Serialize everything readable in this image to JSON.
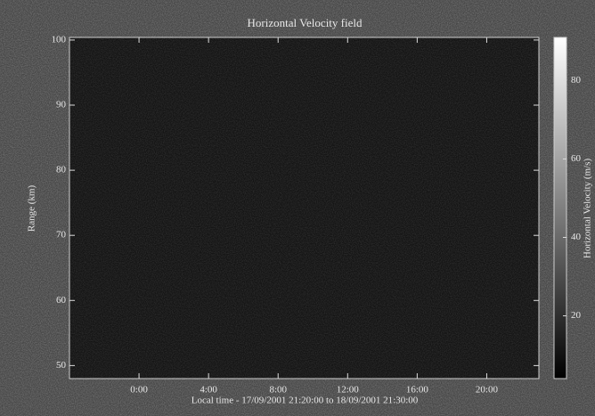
{
  "chart_data": {
    "type": "quiver",
    "title": "Horizontal Velocity field",
    "x_label": "Local time - 17/09/2001  21:20:00 to 18/09/2001  21:30:00",
    "y_label": "Range (km)",
    "xlim": [
      -4,
      23
    ],
    "xticks": [
      {
        "value": 0,
        "label": "0:00"
      },
      {
        "value": 4,
        "label": "4:00"
      },
      {
        "value": 8,
        "label": "8:00"
      },
      {
        "value": 12,
        "label": "12:00"
      },
      {
        "value": 16,
        "label": "16:00"
      },
      {
        "value": 20,
        "label": "20:00"
      }
    ],
    "ylim": [
      48,
      100.4
    ],
    "yticks": [
      50,
      60,
      70,
      80,
      90,
      100
    ],
    "colorbar": {
      "label": "Horizontal Velocity (m/s)",
      "lim": [
        4,
        91
      ],
      "ticks": [
        20,
        40,
        60,
        80
      ],
      "colors": [
        "#000000",
        "#ffffff"
      ]
    }
  }
}
